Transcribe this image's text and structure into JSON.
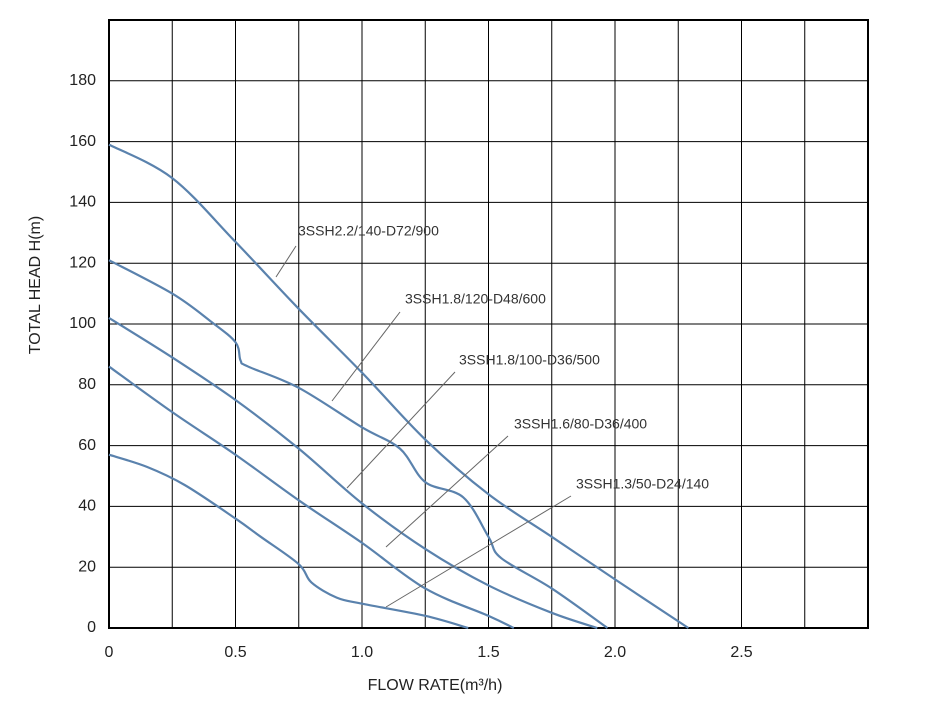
{
  "chart_data": {
    "type": "line",
    "x_label": "FLOW RATE(m³/h)",
    "y_label": "TOTAL HEAD H(m)",
    "xlim": [
      0,
      3
    ],
    "xticks": [
      0,
      0.5,
      {
        "value": 1,
        "label": "1.0"
      },
      1.5,
      {
        "value": 2,
        "label": "2.0"
      },
      2.5
    ],
    "ylim": [
      0,
      200
    ],
    "yticks": [
      0,
      20,
      40,
      60,
      80,
      100,
      120,
      140,
      160,
      180
    ],
    "grid": true,
    "series": [
      {
        "name": "3SSH2.2/140-D72/900",
        "color": "#5a82ad",
        "x": [
          0,
          0.25,
          0.5,
          0.75,
          1.0,
          1.25,
          1.5,
          1.75,
          2.0,
          2.29
        ],
        "values": [
          159,
          148,
          127,
          105,
          84,
          62,
          44,
          30,
          16,
          0
        ]
      },
      {
        "name": "3SSH1.8/120-D48/600",
        "color": "#5a82ad",
        "x": [
          0,
          0.25,
          0.4,
          0.5,
          0.52,
          0.55,
          0.75,
          1.0,
          1.15,
          1.25,
          1.4,
          1.5,
          1.55,
          1.75,
          1.97
        ],
        "values": [
          121,
          110,
          101,
          94,
          88,
          86,
          79,
          66,
          59,
          48,
          43,
          30,
          23,
          13,
          0
        ]
      },
      {
        "name": "3SSH1.8/100-D36/500",
        "color": "#5a82ad",
        "x": [
          0,
          0.25,
          0.5,
          0.75,
          1.0,
          1.25,
          1.5,
          1.75,
          1.93
        ],
        "values": [
          102,
          89,
          75,
          59,
          41,
          26,
          14,
          5,
          0
        ]
      },
      {
        "name": "3SSH1.6/80-D36/400",
        "color": "#5a82ad",
        "x": [
          0,
          0.25,
          0.5,
          0.75,
          1.0,
          1.25,
          1.5,
          1.6
        ],
        "values": [
          86,
          71,
          57,
          42,
          28,
          13,
          4,
          0
        ]
      },
      {
        "name": "3SSH1.3/50-D24/140",
        "color": "#5a82ad",
        "x": [
          0,
          0.15,
          0.3,
          0.5,
          0.6,
          0.75,
          0.8,
          0.9,
          1.0,
          1.25,
          1.42
        ],
        "values": [
          57,
          53,
          47,
          36,
          30,
          21,
          15,
          10,
          8,
          4,
          0
        ]
      }
    ]
  }
}
